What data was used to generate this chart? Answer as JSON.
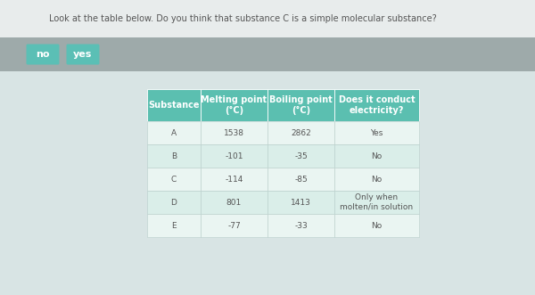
{
  "question": "Look at the table below. Do you think that substance C is a simple molecular substance?",
  "buttons": [
    "no",
    "yes"
  ],
  "button_color": "#5bbfb5",
  "button_text_color": "#ffffff",
  "header_color": "#5bbfb0",
  "header_text_color": "#ffffff",
  "row_color_light": "#daeee9",
  "row_color_lighter": "#eaf5f2",
  "table_headers": [
    "Substance",
    "Melting point\n(°C)",
    "Boiling point\n(°C)",
    "Does it conduct\nelectricity?"
  ],
  "table_data": [
    [
      "A",
      "1538",
      "2862",
      "Yes"
    ],
    [
      "B",
      "-101",
      "-35",
      "No"
    ],
    [
      "C",
      "-114",
      "-85",
      "No"
    ],
    [
      "D",
      "801",
      "1413",
      "Only when\nmolten/in solution"
    ],
    [
      "E",
      "-77",
      "-33",
      "No"
    ]
  ],
  "bg_question": "#e8ecec",
  "bg_buttons": "#9eaaaa",
  "bg_card": "#dde6e6",
  "question_text_color": "#555555",
  "question_fontsize": 7.0,
  "table_fontsize": 6.5,
  "header_fontsize": 7.0,
  "btn_fontsize": 8.0
}
